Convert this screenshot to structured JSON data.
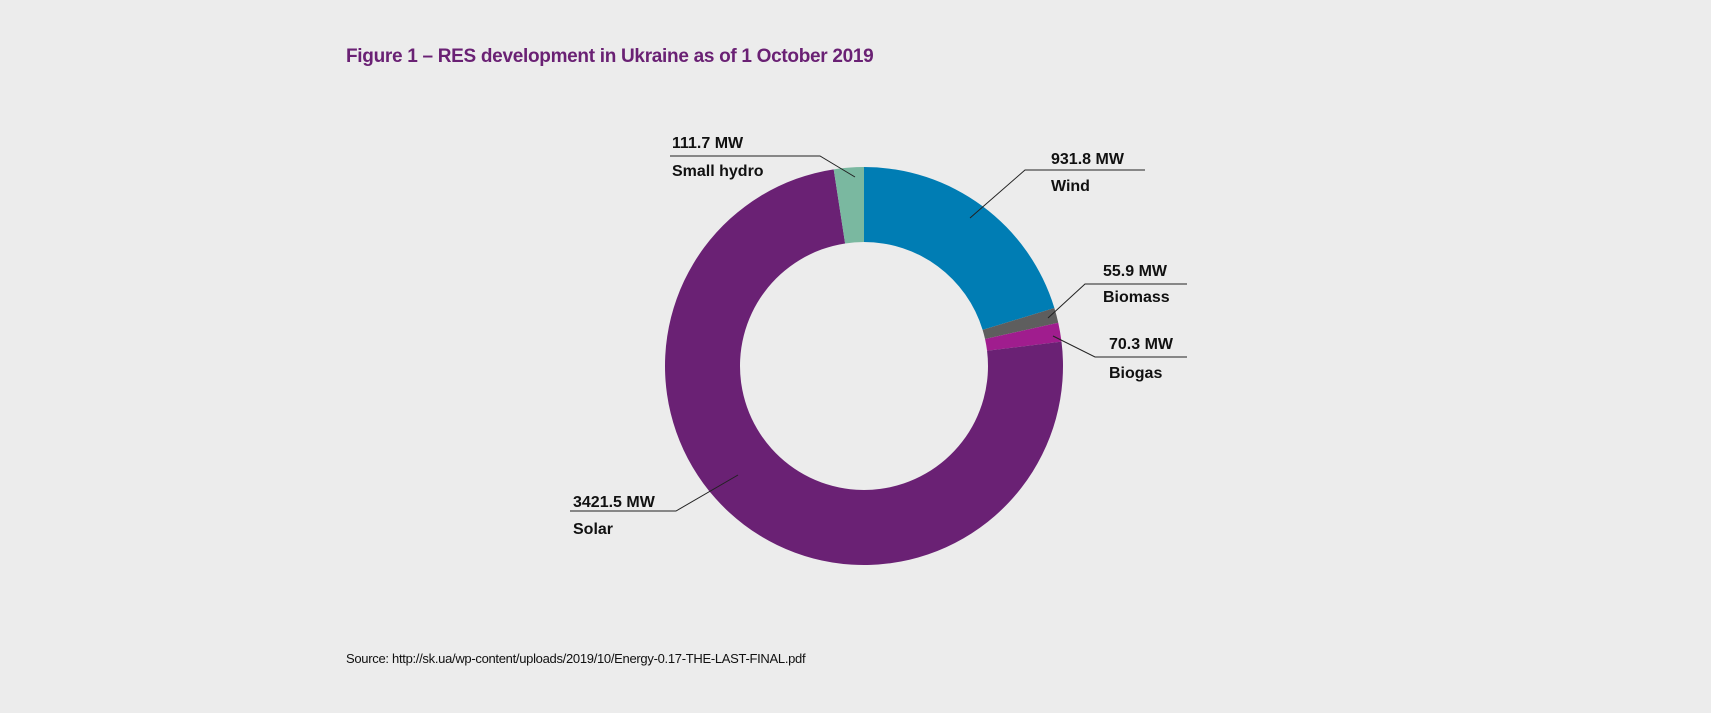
{
  "figure": {
    "title": "Figure 1 – RES development in Ukraine as of 1 October 2019",
    "source": "Source: http://sk.ua/wp-content/uploads/2019/10/Energy-0.17-THE-LAST-FINAL.pdf"
  },
  "chart_data": {
    "type": "pie",
    "variant": "donut",
    "title": "Figure 1 – RES development in Ukraine as of 1 October 2019",
    "slices": [
      {
        "name": "Wind",
        "value": 931.8,
        "value_label": "931.8 MW",
        "color": "#007db4"
      },
      {
        "name": "Biomass",
        "value": 55.9,
        "value_label": "55.9 MW",
        "color": "#5e5e5e"
      },
      {
        "name": "Biogas",
        "value": 70.3,
        "value_label": "70.3 MW",
        "color": "#a01d8e"
      },
      {
        "name": "Solar",
        "value": 3421.5,
        "value_label": "3421.5 MW",
        "color": "#6a2174"
      },
      {
        "name": "Small hydro",
        "value": 111.7,
        "value_label": "111.7 MW",
        "color": "#7ab8a0"
      }
    ],
    "unit": "MW",
    "start": "top",
    "direction": "clockwise",
    "legend": "none (callout labels)"
  }
}
